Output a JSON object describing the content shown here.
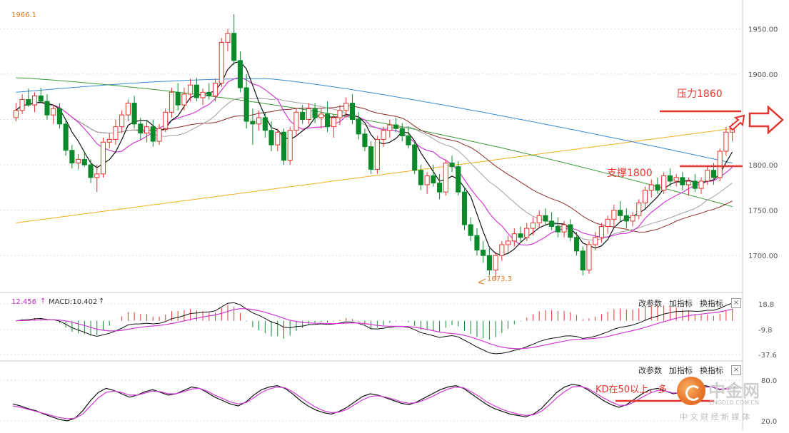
{
  "main_panel": {
    "high_label": "1966.1",
    "low_label": "1673.3",
    "y_ticks": [
      "1950.00",
      "1900.00",
      "1850.00",
      "1800.00",
      "1750.00",
      "1700.00"
    ],
    "annotations": {
      "resistance": "压力1860",
      "support": "支撑1800"
    }
  },
  "macd_panel": {
    "readout_value": "12.456",
    "readout_label": "MACD:10.402",
    "y_ticks": [
      "18.8",
      "-9.8",
      "-37.6"
    ],
    "buttons": [
      "改参数",
      "加指标",
      "换指标"
    ],
    "close": "×"
  },
  "kd_panel": {
    "y_ticks": [
      "80.0",
      "20.0"
    ],
    "buttons": [
      "改参数",
      "加指标",
      "换指标"
    ],
    "close": "×",
    "annotation": "KD在50以上，多"
  },
  "watermark": {
    "name": "中金网",
    "url": "CNGOLD.COM.CN",
    "tagline": "中 文 财 经 新 媒 体"
  },
  "colors": {
    "up_candle": "#e0342c",
    "down_candle": "#0a8a2a",
    "ma5": "#111111",
    "ma10": "#d23ad6",
    "ma20": "#a0a0a0",
    "ma30": "#8b2a2a",
    "ma60": "#3a9a3a",
    "ma120": "#3a8ad6",
    "ma250": "#f0b020",
    "annotation": "#e0342c"
  },
  "chart_data": [
    {
      "type": "candlestick",
      "panel": "price",
      "ylim": [
        1675,
        1966
      ],
      "grid": true,
      "candles": [
        {
          "o": 1852,
          "h": 1868,
          "l": 1848,
          "c": 1860
        },
        {
          "o": 1860,
          "h": 1878,
          "l": 1856,
          "c": 1872
        },
        {
          "o": 1872,
          "h": 1884,
          "l": 1864,
          "c": 1866
        },
        {
          "o": 1866,
          "h": 1880,
          "l": 1858,
          "c": 1876
        },
        {
          "o": 1876,
          "h": 1885,
          "l": 1868,
          "c": 1870
        },
        {
          "o": 1870,
          "h": 1878,
          "l": 1850,
          "c": 1855
        },
        {
          "o": 1855,
          "h": 1866,
          "l": 1845,
          "c": 1862
        },
        {
          "o": 1862,
          "h": 1868,
          "l": 1840,
          "c": 1845
        },
        {
          "o": 1845,
          "h": 1850,
          "l": 1810,
          "c": 1816
        },
        {
          "o": 1816,
          "h": 1822,
          "l": 1796,
          "c": 1802
        },
        {
          "o": 1802,
          "h": 1812,
          "l": 1795,
          "c": 1806
        },
        {
          "o": 1806,
          "h": 1815,
          "l": 1798,
          "c": 1800
        },
        {
          "o": 1800,
          "h": 1806,
          "l": 1780,
          "c": 1786
        },
        {
          "o": 1786,
          "h": 1800,
          "l": 1770,
          "c": 1790
        },
        {
          "o": 1790,
          "h": 1830,
          "l": 1786,
          "c": 1825
        },
        {
          "o": 1825,
          "h": 1835,
          "l": 1818,
          "c": 1828
        },
        {
          "o": 1828,
          "h": 1850,
          "l": 1822,
          "c": 1842
        },
        {
          "o": 1842,
          "h": 1860,
          "l": 1835,
          "c": 1855
        },
        {
          "o": 1855,
          "h": 1872,
          "l": 1848,
          "c": 1868
        },
        {
          "o": 1868,
          "h": 1876,
          "l": 1840,
          "c": 1845
        },
        {
          "o": 1845,
          "h": 1852,
          "l": 1828,
          "c": 1835
        },
        {
          "o": 1835,
          "h": 1848,
          "l": 1825,
          "c": 1842
        },
        {
          "o": 1842,
          "h": 1850,
          "l": 1820,
          "c": 1826
        },
        {
          "o": 1826,
          "h": 1845,
          "l": 1822,
          "c": 1840
        },
        {
          "o": 1840,
          "h": 1862,
          "l": 1836,
          "c": 1858
        },
        {
          "o": 1858,
          "h": 1885,
          "l": 1852,
          "c": 1880
        },
        {
          "o": 1880,
          "h": 1890,
          "l": 1860,
          "c": 1866
        },
        {
          "o": 1866,
          "h": 1885,
          "l": 1860,
          "c": 1878
        },
        {
          "o": 1878,
          "h": 1895,
          "l": 1870,
          "c": 1888
        },
        {
          "o": 1888,
          "h": 1896,
          "l": 1870,
          "c": 1874
        },
        {
          "o": 1874,
          "h": 1884,
          "l": 1866,
          "c": 1880
        },
        {
          "o": 1880,
          "h": 1890,
          "l": 1872,
          "c": 1876
        },
        {
          "o": 1876,
          "h": 1895,
          "l": 1870,
          "c": 1890
        },
        {
          "o": 1890,
          "h": 1940,
          "l": 1886,
          "c": 1935
        },
        {
          "o": 1935,
          "h": 1950,
          "l": 1925,
          "c": 1945
        },
        {
          "o": 1945,
          "h": 1966,
          "l": 1910,
          "c": 1915
        },
        {
          "o": 1915,
          "h": 1925,
          "l": 1880,
          "c": 1885
        },
        {
          "o": 1885,
          "h": 1900,
          "l": 1840,
          "c": 1848
        },
        {
          "o": 1848,
          "h": 1862,
          "l": 1822,
          "c": 1845
        },
        {
          "o": 1845,
          "h": 1860,
          "l": 1838,
          "c": 1852
        },
        {
          "o": 1852,
          "h": 1858,
          "l": 1830,
          "c": 1838
        },
        {
          "o": 1838,
          "h": 1848,
          "l": 1815,
          "c": 1822
        },
        {
          "o": 1822,
          "h": 1840,
          "l": 1815,
          "c": 1836
        },
        {
          "o": 1836,
          "h": 1840,
          "l": 1800,
          "c": 1805
        },
        {
          "o": 1805,
          "h": 1842,
          "l": 1800,
          "c": 1838
        },
        {
          "o": 1838,
          "h": 1862,
          "l": 1832,
          "c": 1858
        },
        {
          "o": 1858,
          "h": 1866,
          "l": 1845,
          "c": 1850
        },
        {
          "o": 1850,
          "h": 1868,
          "l": 1845,
          "c": 1862
        },
        {
          "o": 1862,
          "h": 1868,
          "l": 1846,
          "c": 1852
        },
        {
          "o": 1852,
          "h": 1862,
          "l": 1840,
          "c": 1856
        },
        {
          "o": 1856,
          "h": 1870,
          "l": 1836,
          "c": 1842
        },
        {
          "o": 1842,
          "h": 1856,
          "l": 1830,
          "c": 1852
        },
        {
          "o": 1852,
          "h": 1866,
          "l": 1844,
          "c": 1860
        },
        {
          "o": 1860,
          "h": 1874,
          "l": 1852,
          "c": 1868
        },
        {
          "o": 1868,
          "h": 1878,
          "l": 1845,
          "c": 1850
        },
        {
          "o": 1850,
          "h": 1858,
          "l": 1828,
          "c": 1834
        },
        {
          "o": 1834,
          "h": 1840,
          "l": 1815,
          "c": 1820
        },
        {
          "o": 1820,
          "h": 1826,
          "l": 1790,
          "c": 1795
        },
        {
          "o": 1795,
          "h": 1832,
          "l": 1790,
          "c": 1828
        },
        {
          "o": 1828,
          "h": 1842,
          "l": 1820,
          "c": 1838
        },
        {
          "o": 1838,
          "h": 1850,
          "l": 1830,
          "c": 1844
        },
        {
          "o": 1844,
          "h": 1852,
          "l": 1836,
          "c": 1840
        },
        {
          "o": 1840,
          "h": 1846,
          "l": 1826,
          "c": 1832
        },
        {
          "o": 1832,
          "h": 1842,
          "l": 1818,
          "c": 1822
        },
        {
          "o": 1822,
          "h": 1826,
          "l": 1790,
          "c": 1794
        },
        {
          "o": 1794,
          "h": 1800,
          "l": 1772,
          "c": 1778
        },
        {
          "o": 1778,
          "h": 1792,
          "l": 1768,
          "c": 1788
        },
        {
          "o": 1788,
          "h": 1800,
          "l": 1776,
          "c": 1780
        },
        {
          "o": 1780,
          "h": 1790,
          "l": 1762,
          "c": 1770
        },
        {
          "o": 1770,
          "h": 1806,
          "l": 1766,
          "c": 1802
        },
        {
          "o": 1802,
          "h": 1810,
          "l": 1792,
          "c": 1798
        },
        {
          "o": 1798,
          "h": 1804,
          "l": 1766,
          "c": 1770
        },
        {
          "o": 1770,
          "h": 1776,
          "l": 1728,
          "c": 1734
        },
        {
          "o": 1734,
          "h": 1742,
          "l": 1716,
          "c": 1722
        },
        {
          "o": 1722,
          "h": 1730,
          "l": 1700,
          "c": 1706
        },
        {
          "o": 1706,
          "h": 1716,
          "l": 1692,
          "c": 1700
        },
        {
          "o": 1700,
          "h": 1708,
          "l": 1678,
          "c": 1684
        },
        {
          "o": 1684,
          "h": 1704,
          "l": 1673.3,
          "c": 1700
        },
        {
          "o": 1700,
          "h": 1716,
          "l": 1694,
          "c": 1712
        },
        {
          "o": 1712,
          "h": 1722,
          "l": 1702,
          "c": 1716
        },
        {
          "o": 1716,
          "h": 1730,
          "l": 1710,
          "c": 1724
        },
        {
          "o": 1724,
          "h": 1732,
          "l": 1714,
          "c": 1720
        },
        {
          "o": 1720,
          "h": 1736,
          "l": 1716,
          "c": 1730
        },
        {
          "o": 1730,
          "h": 1742,
          "l": 1722,
          "c": 1736
        },
        {
          "o": 1736,
          "h": 1750,
          "l": 1730,
          "c": 1744
        },
        {
          "o": 1744,
          "h": 1752,
          "l": 1734,
          "c": 1738
        },
        {
          "o": 1738,
          "h": 1748,
          "l": 1728,
          "c": 1732
        },
        {
          "o": 1732,
          "h": 1742,
          "l": 1720,
          "c": 1726
        },
        {
          "o": 1726,
          "h": 1738,
          "l": 1720,
          "c": 1734
        },
        {
          "o": 1734,
          "h": 1740,
          "l": 1716,
          "c": 1720
        },
        {
          "o": 1720,
          "h": 1726,
          "l": 1700,
          "c": 1705
        },
        {
          "o": 1705,
          "h": 1710,
          "l": 1678,
          "c": 1684
        },
        {
          "o": 1684,
          "h": 1716,
          "l": 1680,
          "c": 1712
        },
        {
          "o": 1712,
          "h": 1726,
          "l": 1706,
          "c": 1720
        },
        {
          "o": 1720,
          "h": 1736,
          "l": 1714,
          "c": 1732
        },
        {
          "o": 1732,
          "h": 1744,
          "l": 1724,
          "c": 1740
        },
        {
          "o": 1740,
          "h": 1756,
          "l": 1732,
          "c": 1750
        },
        {
          "o": 1750,
          "h": 1760,
          "l": 1738,
          "c": 1744
        },
        {
          "o": 1744,
          "h": 1752,
          "l": 1730,
          "c": 1738
        },
        {
          "o": 1738,
          "h": 1748,
          "l": 1732,
          "c": 1744
        },
        {
          "o": 1744,
          "h": 1762,
          "l": 1740,
          "c": 1758
        },
        {
          "o": 1758,
          "h": 1776,
          "l": 1752,
          "c": 1772
        },
        {
          "o": 1772,
          "h": 1784,
          "l": 1764,
          "c": 1778
        },
        {
          "o": 1778,
          "h": 1786,
          "l": 1768,
          "c": 1772
        },
        {
          "o": 1772,
          "h": 1792,
          "l": 1768,
          "c": 1788
        },
        {
          "o": 1788,
          "h": 1796,
          "l": 1776,
          "c": 1782
        },
        {
          "o": 1782,
          "h": 1790,
          "l": 1776,
          "c": 1786
        },
        {
          "o": 1786,
          "h": 1792,
          "l": 1772,
          "c": 1778
        },
        {
          "o": 1778,
          "h": 1786,
          "l": 1766,
          "c": 1782
        },
        {
          "o": 1782,
          "h": 1790,
          "l": 1770,
          "c": 1774
        },
        {
          "o": 1774,
          "h": 1786,
          "l": 1768,
          "c": 1782
        },
        {
          "o": 1782,
          "h": 1798,
          "l": 1778,
          "c": 1794
        },
        {
          "o": 1794,
          "h": 1802,
          "l": 1778,
          "c": 1786
        },
        {
          "o": 1786,
          "h": 1818,
          "l": 1782,
          "c": 1815
        },
        {
          "o": 1815,
          "h": 1842,
          "l": 1810,
          "c": 1836
        },
        {
          "o": 1836,
          "h": 1846,
          "l": 1826,
          "c": 1840
        }
      ],
      "moving_averages": [
        {
          "key": "ma250",
          "start": 1736,
          "end": 1840,
          "shape": "linear"
        },
        {
          "key": "ma120",
          "start": 1880,
          "peak": 1895,
          "end": 1802,
          "shape": "arc"
        },
        {
          "key": "ma60",
          "start": 1896,
          "peak": 1896,
          "end": 1754,
          "shape": "decline"
        }
      ],
      "annotations": [
        {
          "text": "压力1860",
          "level": 1860
        },
        {
          "text": "支撑1800",
          "level": 1800
        },
        {
          "text": "1966.1",
          "kind": "high"
        },
        {
          "text": "1673.3",
          "kind": "low"
        }
      ]
    },
    {
      "type": "bar",
      "panel": "macd",
      "ylim": [
        -37.6,
        18.8
      ],
      "readout": {
        "value": 12.456,
        "MACD": 10.402
      }
    },
    {
      "type": "line",
      "panel": "kd",
      "ylim": [
        20,
        80
      ],
      "series": [
        {
          "values": [
            45,
            42,
            38,
            35,
            30,
            26,
            22,
            20,
            24,
            35,
            50,
            62,
            68,
            65,
            60,
            55,
            58,
            63,
            66,
            62,
            58,
            60,
            65,
            70,
            68,
            62,
            55,
            50,
            45,
            42,
            48,
            58,
            66,
            70,
            72,
            68,
            60,
            50,
            42,
            36,
            32,
            30,
            34,
            40,
            48,
            56,
            60,
            58,
            54,
            50,
            46,
            44,
            48,
            54,
            60,
            66,
            70,
            72,
            68,
            60,
            52,
            44,
            38,
            34,
            30,
            28,
            26,
            30,
            38,
            50,
            62,
            70,
            74,
            72,
            66,
            58,
            50,
            44,
            40,
            44,
            52,
            60,
            66,
            68,
            64,
            60,
            62,
            66,
            70,
            72,
            70,
            66,
            68,
            70
          ]
        },
        {
          "values": [
            42,
            40,
            37,
            34,
            31,
            28,
            25,
            23,
            24,
            30,
            42,
            54,
            62,
            64,
            62,
            58,
            58,
            61,
            64,
            63,
            60,
            60,
            63,
            67,
            68,
            64,
            58,
            53,
            48,
            45,
            47,
            54,
            62,
            67,
            70,
            69,
            63,
            55,
            47,
            40,
            35,
            32,
            33,
            37,
            44,
            51,
            56,
            57,
            55,
            52,
            48,
            46,
            47,
            51,
            56,
            62,
            67,
            70,
            69,
            63,
            56,
            48,
            42,
            37,
            33,
            30,
            28,
            29,
            34,
            43,
            54,
            63,
            70,
            71,
            68,
            61,
            54,
            48,
            43,
            43,
            48,
            55,
            61,
            65,
            64,
            61,
            62,
            65,
            68,
            70,
            70,
            67,
            67,
            69
          ]
        }
      ]
    }
  ]
}
